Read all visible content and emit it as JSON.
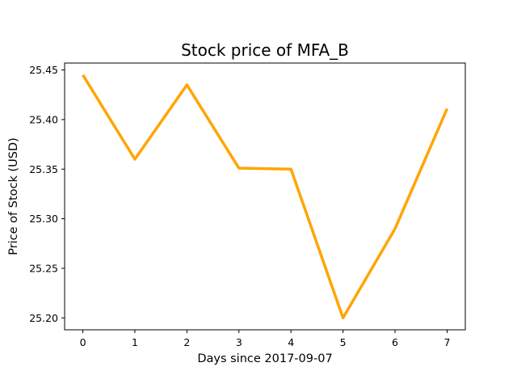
{
  "chart_data": {
    "type": "line",
    "title": "Stock price of MFA_B",
    "xlabel": "Days since 2017-09-07",
    "ylabel": "Price of Stock (USD)",
    "x": [
      0,
      1,
      2,
      3,
      4,
      5,
      6,
      7
    ],
    "series": [
      {
        "values": [
          25.445,
          25.36,
          25.435,
          25.351,
          25.35,
          25.2,
          25.29,
          25.411
        ],
        "color": "#FFA500"
      }
    ],
    "xlim": [
      -0.35,
      7.35
    ],
    "ylim": [
      25.188,
      25.457
    ],
    "xticks": [
      0,
      1,
      2,
      3,
      4,
      5,
      6,
      7
    ],
    "xtick_labels": [
      "0",
      "1",
      "2",
      "3",
      "4",
      "5",
      "6",
      "7"
    ],
    "yticks": [
      25.2,
      25.25,
      25.3,
      25.35,
      25.4,
      25.45
    ],
    "ytick_labels": [
      "25.20",
      "25.25",
      "25.30",
      "25.35",
      "25.40",
      "25.45"
    ],
    "grid": false,
    "legend": "none"
  }
}
